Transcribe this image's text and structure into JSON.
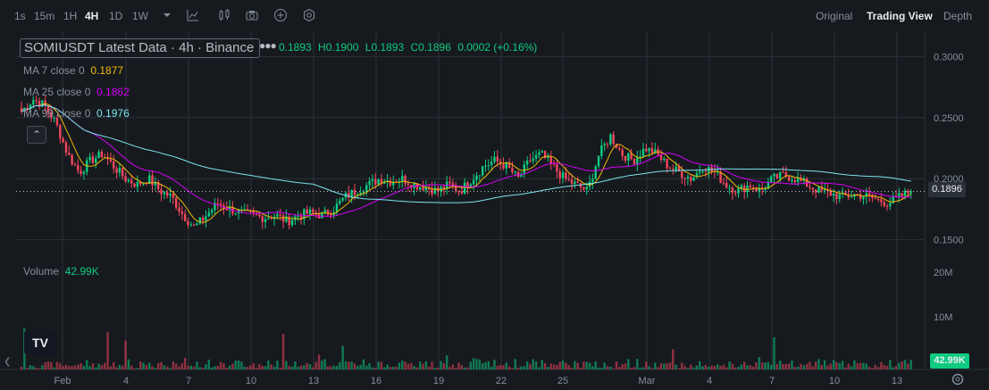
{
  "toolbar": {
    "timeframes": [
      "1s",
      "15m",
      "1H",
      "4H",
      "1D",
      "1W"
    ],
    "active_timeframe": "4H",
    "views": [
      "Original",
      "Trading View",
      "Depth"
    ],
    "active_view": "Trading View"
  },
  "legend": {
    "title": "SOMIUSDT Latest Data · 4h · Binance",
    "ohlc": {
      "open": "0.1893",
      "high": "H0.1900",
      "low": "L0.1893",
      "close": "C0.1896",
      "change": "0.0002 (+0.16%)"
    },
    "ma": [
      {
        "label": "MA 7 close 0",
        "value": "0.1877",
        "color": "#f0b90b"
      },
      {
        "label": "MA 25 close 0",
        "value": "0.1862",
        "color": "#d500f9"
      },
      {
        "label": "MA 99 close 0",
        "value": "0.1976",
        "color": "#7ee4f1"
      }
    ],
    "volume": {
      "label": "Volume",
      "value": "42.99K"
    }
  },
  "price_tag": "0.1896",
  "volume_tag": "42.99K",
  "colors": {
    "up": "#0ecb81",
    "down": "#f6465d",
    "ma7": "#f0b90b",
    "ma25": "#d500f9",
    "ma99": "#7ee4f1",
    "bg": "#161a1e",
    "grid": "#2b3139"
  },
  "chart_data": {
    "type": "candlestick",
    "price_axis_labels": [
      "0.3000",
      "0.2500",
      "0.2000",
      "0.1500"
    ],
    "volume_axis_labels": [
      "20M",
      "10M"
    ],
    "time_axis_labels": [
      "Feb",
      "4",
      "7",
      "10",
      "13",
      "16",
      "19",
      "22",
      "25",
      "Mar",
      "4",
      "7",
      "10",
      "13"
    ],
    "current_price": 0.1896,
    "price_series": [
      0.255,
      0.265,
      0.26,
      0.245,
      0.22,
      0.205,
      0.215,
      0.22,
      0.21,
      0.2,
      0.195,
      0.2,
      0.19,
      0.185,
      0.17,
      0.16,
      0.17,
      0.18,
      0.175,
      0.172,
      0.17,
      0.168,
      0.17,
      0.165,
      0.17,
      0.172,
      0.17,
      0.175,
      0.185,
      0.19,
      0.195,
      0.2,
      0.198,
      0.2,
      0.195,
      0.193,
      0.19,
      0.195,
      0.19,
      0.2,
      0.21,
      0.215,
      0.21,
      0.2,
      0.215,
      0.22,
      0.21,
      0.2,
      0.195,
      0.19,
      0.22,
      0.235,
      0.22,
      0.215,
      0.225,
      0.22,
      0.21,
      0.205,
      0.2,
      0.21,
      0.205,
      0.195,
      0.19,
      0.195,
      0.19,
      0.2,
      0.203,
      0.2,
      0.195,
      0.19,
      0.188,
      0.185,
      0.187,
      0.186,
      0.183,
      0.18,
      0.185,
      0.1896
    ],
    "ma_values": {
      "ma7": 0.1877,
      "ma25": 0.1862,
      "ma99": 0.1976
    }
  }
}
